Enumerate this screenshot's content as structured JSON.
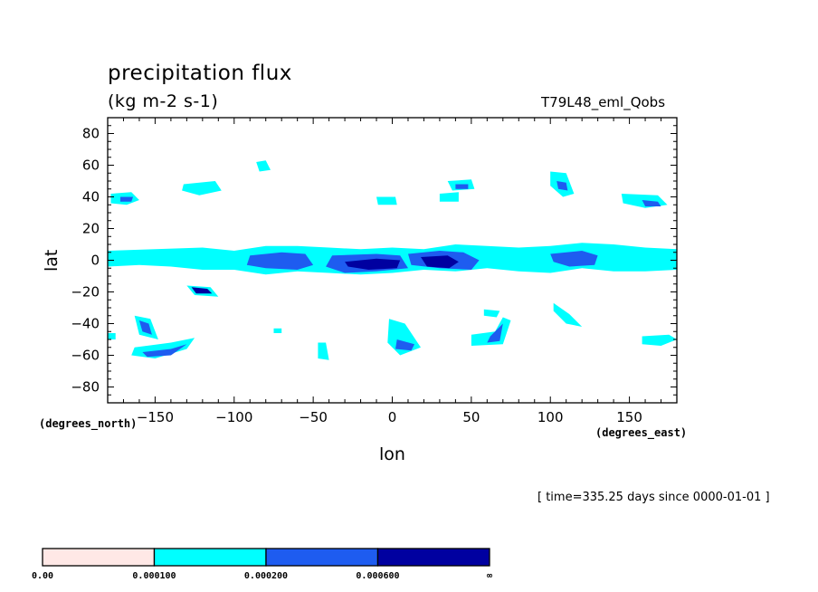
{
  "chart_data": {
    "type": "contour_map",
    "title": "precipitation flux",
    "units": "(kg m-2 s-1)",
    "run_label": "T79L48_eml_Qobs",
    "xlabel": "lon",
    "ylabel": "lat",
    "x_units": "(degrees_east)",
    "y_units": "(degrees_north)",
    "xlim": [
      -180,
      180
    ],
    "ylim": [
      -90,
      90
    ],
    "x_ticks": [
      -150,
      -100,
      -50,
      0,
      50,
      100,
      150
    ],
    "y_ticks": [
      80,
      60,
      40,
      20,
      0,
      -20,
      -40,
      -60,
      -80
    ],
    "timestamp": "[ time=335.25 days since 0000-01-01 ]",
    "colorbar": {
      "levels": [
        "0.00",
        "0.000100",
        "0.000200",
        "0.000600",
        "∞"
      ],
      "colors": [
        "#ffe8e6",
        "#00ffff",
        "#1e5cf0",
        "#0000a0"
      ]
    },
    "regions": [
      {
        "level": 1,
        "points": [
          [
            -180,
            6
          ],
          [
            -150,
            7
          ],
          [
            -120,
            8
          ],
          [
            -100,
            6
          ],
          [
            -80,
            9
          ],
          [
            -60,
            9
          ],
          [
            -40,
            8
          ],
          [
            -20,
            7
          ],
          [
            0,
            8
          ],
          [
            20,
            7
          ],
          [
            40,
            10
          ],
          [
            60,
            9
          ],
          [
            80,
            8
          ],
          [
            100,
            9
          ],
          [
            120,
            11
          ],
          [
            140,
            10
          ],
          [
            160,
            8
          ],
          [
            180,
            7
          ],
          [
            180,
            -6
          ],
          [
            160,
            -7
          ],
          [
            140,
            -7
          ],
          [
            120,
            -5
          ],
          [
            100,
            -8
          ],
          [
            80,
            -7
          ],
          [
            60,
            -5
          ],
          [
            40,
            -7
          ],
          [
            20,
            -6
          ],
          [
            0,
            -8
          ],
          [
            -20,
            -9
          ],
          [
            -40,
            -8
          ],
          [
            -60,
            -7
          ],
          [
            -80,
            -9
          ],
          [
            -100,
            -6
          ],
          [
            -120,
            -6
          ],
          [
            -140,
            -4
          ],
          [
            -160,
            -3
          ],
          [
            -180,
            -4
          ]
        ]
      },
      {
        "level": 2,
        "points": [
          [
            -90,
            3
          ],
          [
            -70,
            5
          ],
          [
            -55,
            4
          ],
          [
            -50,
            -3
          ],
          [
            -60,
            -6
          ],
          [
            -80,
            -5
          ],
          [
            -92,
            -3
          ]
        ]
      },
      {
        "level": 2,
        "points": [
          [
            -38,
            3
          ],
          [
            -10,
            4
          ],
          [
            5,
            3
          ],
          [
            10,
            -5
          ],
          [
            -10,
            -7
          ],
          [
            -30,
            -8
          ],
          [
            -42,
            -4
          ]
        ]
      },
      {
        "level": 2,
        "points": [
          [
            10,
            4
          ],
          [
            30,
            6
          ],
          [
            45,
            5
          ],
          [
            55,
            0
          ],
          [
            50,
            -6
          ],
          [
            30,
            -5
          ],
          [
            12,
            -3
          ]
        ]
      },
      {
        "level": 2,
        "points": [
          [
            100,
            4
          ],
          [
            120,
            6
          ],
          [
            130,
            3
          ],
          [
            128,
            -3
          ],
          [
            112,
            -4
          ],
          [
            102,
            -1
          ]
        ]
      },
      {
        "level": 3,
        "points": [
          [
            -30,
            -1
          ],
          [
            -10,
            1
          ],
          [
            5,
            0
          ],
          [
            3,
            -5
          ],
          [
            -15,
            -6
          ],
          [
            -28,
            -4
          ]
        ]
      },
      {
        "level": 3,
        "points": [
          [
            18,
            2
          ],
          [
            35,
            3
          ],
          [
            42,
            -1
          ],
          [
            36,
            -5
          ],
          [
            22,
            -4
          ]
        ]
      },
      {
        "level": 1,
        "points": [
          [
            -178,
            42
          ],
          [
            -165,
            43
          ],
          [
            -160,
            38
          ],
          [
            -168,
            35
          ],
          [
            -178,
            36
          ]
        ]
      },
      {
        "level": 2,
        "points": [
          [
            -172,
            40
          ],
          [
            -164,
            40
          ],
          [
            -165,
            37
          ],
          [
            -172,
            37
          ]
        ]
      },
      {
        "level": 1,
        "points": [
          [
            -132,
            48
          ],
          [
            -112,
            50
          ],
          [
            -108,
            44
          ],
          [
            -122,
            41
          ],
          [
            -133,
            44
          ]
        ]
      },
      {
        "level": 1,
        "points": [
          [
            -86,
            62
          ],
          [
            -80,
            63
          ],
          [
            -77,
            57
          ],
          [
            -84,
            56
          ]
        ]
      },
      {
        "level": 1,
        "points": [
          [
            -10,
            40
          ],
          [
            2,
            40
          ],
          [
            3,
            35
          ],
          [
            -9,
            35
          ]
        ]
      },
      {
        "level": 1,
        "points": [
          [
            35,
            50
          ],
          [
            50,
            51
          ],
          [
            52,
            45
          ],
          [
            38,
            44
          ]
        ]
      },
      {
        "level": 2,
        "points": [
          [
            40,
            48
          ],
          [
            48,
            48
          ],
          [
            48,
            45
          ],
          [
            40,
            45
          ]
        ]
      },
      {
        "level": 1,
        "points": [
          [
            30,
            42
          ],
          [
            42,
            43
          ],
          [
            42,
            37
          ],
          [
            30,
            37
          ]
        ]
      },
      {
        "level": 1,
        "points": [
          [
            100,
            56
          ],
          [
            110,
            55
          ],
          [
            115,
            42
          ],
          [
            108,
            40
          ],
          [
            100,
            47
          ]
        ]
      },
      {
        "level": 2,
        "points": [
          [
            104,
            50
          ],
          [
            110,
            49
          ],
          [
            111,
            44
          ],
          [
            105,
            45
          ]
        ]
      },
      {
        "level": 1,
        "points": [
          [
            145,
            42
          ],
          [
            168,
            41
          ],
          [
            174,
            35
          ],
          [
            160,
            33
          ],
          [
            146,
            36
          ]
        ]
      },
      {
        "level": 2,
        "points": [
          [
            158,
            38
          ],
          [
            168,
            37
          ],
          [
            170,
            34
          ],
          [
            160,
            34
          ]
        ]
      },
      {
        "level": 1,
        "points": [
          [
            -130,
            -16
          ],
          [
            -115,
            -17
          ],
          [
            -110,
            -23
          ],
          [
            -125,
            -22
          ]
        ]
      },
      {
        "level": 3,
        "points": [
          [
            -127,
            -17
          ],
          [
            -117,
            -18
          ],
          [
            -114,
            -21
          ],
          [
            -124,
            -21
          ]
        ]
      },
      {
        "level": 1,
        "points": [
          [
            -163,
            -35
          ],
          [
            -153,
            -37
          ],
          [
            -148,
            -50
          ],
          [
            -160,
            -47
          ]
        ]
      },
      {
        "level": 2,
        "points": [
          [
            -160,
            -38
          ],
          [
            -154,
            -40
          ],
          [
            -152,
            -47
          ],
          [
            -158,
            -45
          ]
        ]
      },
      {
        "level": 1,
        "points": [
          [
            -163,
            -55
          ],
          [
            -140,
            -52
          ],
          [
            -125,
            -49
          ],
          [
            -130,
            -56
          ],
          [
            -150,
            -62
          ],
          [
            -165,
            -60
          ]
        ]
      },
      {
        "level": 2,
        "points": [
          [
            -158,
            -58
          ],
          [
            -140,
            -56
          ],
          [
            -130,
            -53
          ],
          [
            -140,
            -60
          ],
          [
            -155,
            -61
          ]
        ]
      },
      {
        "level": 1,
        "points": [
          [
            -2,
            -37
          ],
          [
            8,
            -40
          ],
          [
            18,
            -55
          ],
          [
            5,
            -60
          ],
          [
            -3,
            -52
          ]
        ]
      },
      {
        "level": 2,
        "points": [
          [
            3,
            -50
          ],
          [
            14,
            -53
          ],
          [
            12,
            -57
          ],
          [
            2,
            -56
          ]
        ]
      },
      {
        "level": 1,
        "points": [
          [
            50,
            -47
          ],
          [
            65,
            -45
          ],
          [
            70,
            -36
          ],
          [
            75,
            -38
          ],
          [
            70,
            -53
          ],
          [
            50,
            -54
          ]
        ]
      },
      {
        "level": 2,
        "points": [
          [
            62,
            -48
          ],
          [
            70,
            -40
          ],
          [
            68,
            -51
          ],
          [
            60,
            -52
          ]
        ]
      },
      {
        "level": 1,
        "points": [
          [
            58,
            -31
          ],
          [
            68,
            -32
          ],
          [
            66,
            -36
          ],
          [
            58,
            -35
          ]
        ]
      },
      {
        "level": 1,
        "points": [
          [
            102,
            -27
          ],
          [
            112,
            -34
          ],
          [
            120,
            -42
          ],
          [
            110,
            -40
          ],
          [
            102,
            -32
          ]
        ]
      },
      {
        "level": 1,
        "points": [
          [
            158,
            -48
          ],
          [
            175,
            -47
          ],
          [
            180,
            -50
          ],
          [
            170,
            -54
          ],
          [
            158,
            -53
          ]
        ]
      },
      {
        "level": 1,
        "points": [
          [
            -47,
            -52
          ],
          [
            -42,
            -52
          ],
          [
            -40,
            -63
          ],
          [
            -47,
            -62
          ]
        ]
      },
      {
        "level": 1,
        "points": [
          [
            -75,
            -43
          ],
          [
            -70,
            -43
          ],
          [
            -70,
            -46
          ],
          [
            -75,
            -46
          ]
        ]
      },
      {
        "level": 1,
        "points": [
          [
            -180,
            -46
          ],
          [
            -175,
            -46
          ],
          [
            -175,
            -50
          ],
          [
            -180,
            -50
          ]
        ]
      },
      {
        "level": 1,
        "points": [
          [
            -175,
            6
          ],
          [
            -165,
            6
          ],
          [
            -165,
            2
          ],
          [
            -175,
            2
          ]
        ]
      }
    ]
  }
}
